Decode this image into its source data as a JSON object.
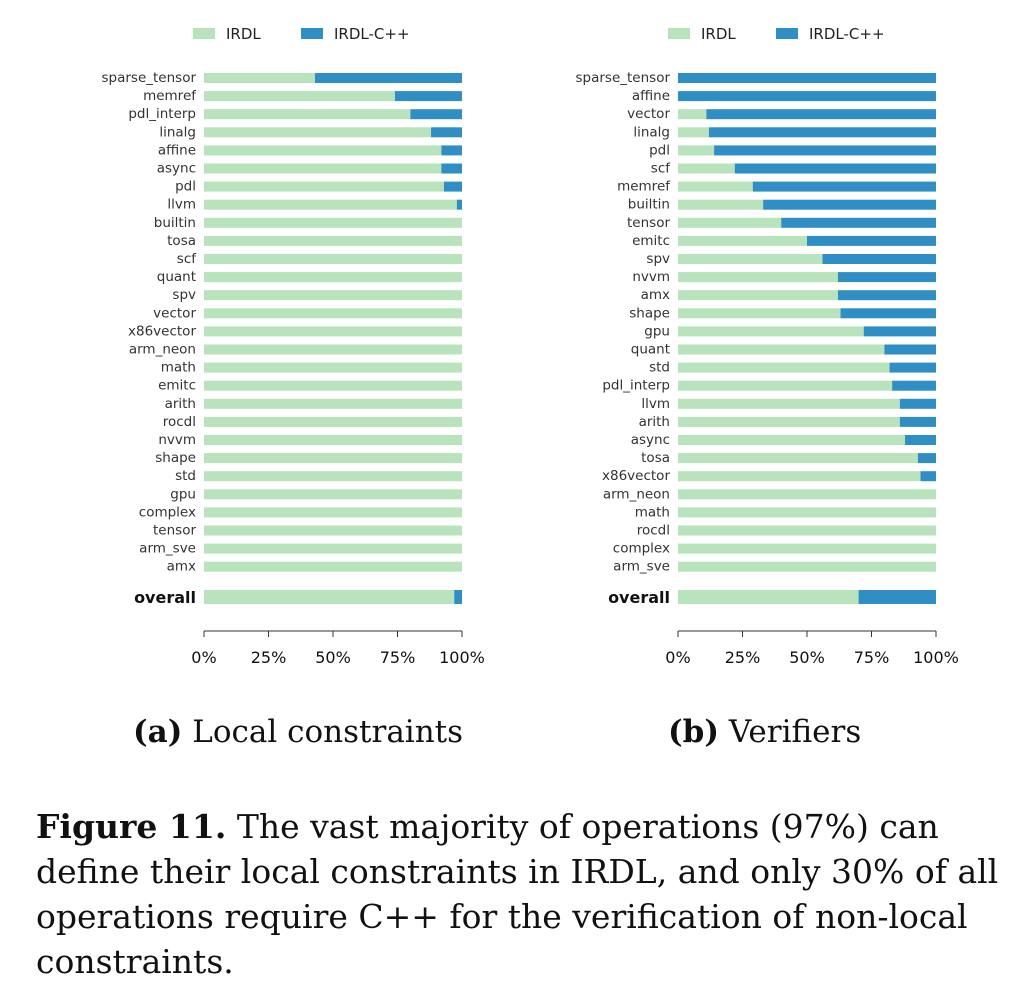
{
  "colors": {
    "irdl": "#b8e3bd",
    "irdl_cpp": "#2f8ec3"
  },
  "chart_data": [
    {
      "type": "bar",
      "orientation": "horizontal",
      "stacked": true,
      "normalized": true,
      "legend_position": "top",
      "xlim": [
        0,
        100
      ],
      "xticks": [
        "0%",
        "25%",
        "50%",
        "75%",
        "100%"
      ],
      "series": [
        {
          "name": "IRDL"
        },
        {
          "name": "IRDL-C++"
        }
      ],
      "categories": [
        "sparse_tensor",
        "memref",
        "pdl_interp",
        "linalg",
        "affine",
        "async",
        "pdl",
        "llvm",
        "builtin",
        "tosa",
        "scf",
        "quant",
        "spv",
        "vector",
        "x86vector",
        "arm_neon",
        "math",
        "emitc",
        "arith",
        "rocdl",
        "nvvm",
        "shape",
        "std",
        "gpu",
        "complex",
        "tensor",
        "arm_sve",
        "amx"
      ],
      "irdl_values": [
        43,
        74,
        80,
        88,
        92,
        92,
        93,
        98,
        100,
        100,
        100,
        100,
        100,
        100,
        100,
        100,
        100,
        100,
        100,
        100,
        100,
        100,
        100,
        100,
        100,
        100,
        100,
        100
      ],
      "overall_label": "overall",
      "overall_irdl": 97
    },
    {
      "type": "bar",
      "orientation": "horizontal",
      "stacked": true,
      "normalized": true,
      "legend_position": "top",
      "xlim": [
        0,
        100
      ],
      "xticks": [
        "0%",
        "25%",
        "50%",
        "75%",
        "100%"
      ],
      "series": [
        {
          "name": "IRDL"
        },
        {
          "name": "IRDL-C++"
        }
      ],
      "categories": [
        "sparse_tensor",
        "affine",
        "vector",
        "linalg",
        "pdl",
        "scf",
        "memref",
        "builtin",
        "tensor",
        "emitc",
        "spv",
        "nvvm",
        "amx",
        "shape",
        "gpu",
        "quant",
        "std",
        "pdl_interp",
        "llvm",
        "arith",
        "async",
        "tosa",
        "x86vector",
        "arm_neon",
        "math",
        "rocdl",
        "complex",
        "arm_sve"
      ],
      "irdl_values": [
        0,
        0,
        11,
        12,
        14,
        22,
        29,
        33,
        40,
        50,
        56,
        62,
        62,
        63,
        72,
        80,
        82,
        83,
        86,
        86,
        88,
        93,
        94,
        100,
        100,
        100,
        100,
        100
      ],
      "overall_label": "overall",
      "overall_irdl": 70
    }
  ],
  "subcaptions": [
    {
      "label": "(a)",
      "text": "Local constraints"
    },
    {
      "label": "(b)",
      "text": "Verifiers"
    }
  ],
  "caption": {
    "label": "Figure 11.",
    "text": "The vast majority of operations (97%) can define their local constraints in IRDL, and only 30% of all operations require C++ for the verification of non-local constraints."
  }
}
